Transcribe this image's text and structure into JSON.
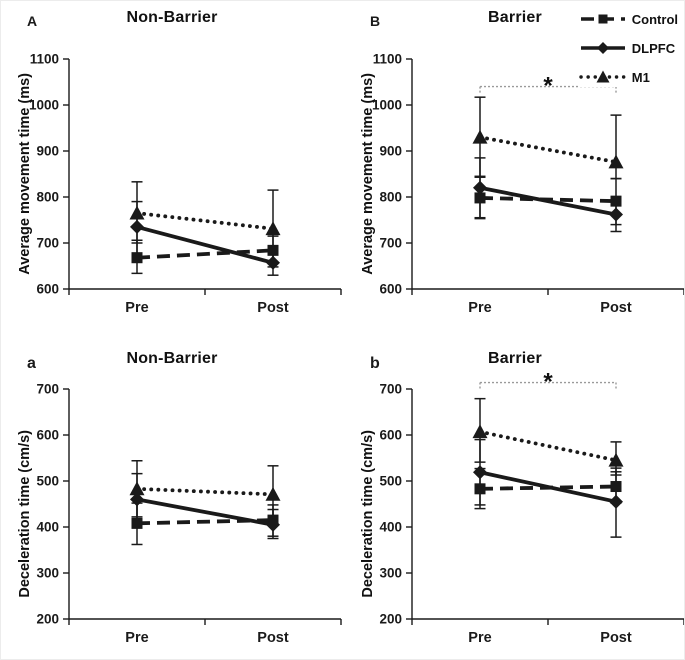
{
  "figure": {
    "background": "#ffffff",
    "ink_color": "#1a1a1a",
    "bracket_color": "#9a9a9a"
  },
  "legend": {
    "position": "top-right",
    "entries": [
      {
        "label": "Control",
        "marker": "square",
        "line": "dashed"
      },
      {
        "label": "DLPFC",
        "marker": "diamond",
        "line": "solid"
      },
      {
        "label": "M1",
        "marker": "triangle",
        "line": "dotted"
      }
    ]
  },
  "chart_data": [
    {
      "type": "line",
      "panel_letter": "A",
      "title": "Non-Barrier",
      "ylabel": "Average movement time (ms)",
      "xlabel": "",
      "ylim": [
        600,
        1100
      ],
      "ytick_step": 100,
      "categories": [
        "Pre",
        "Post"
      ],
      "grid": false,
      "significance": null,
      "series": [
        {
          "name": "Control",
          "marker": "square",
          "line": "dashed",
          "values": [
            668,
            684
          ],
          "err_low": [
            634,
            655
          ],
          "err_high": [
            706,
            715
          ]
        },
        {
          "name": "DLPFC",
          "marker": "diamond",
          "line": "solid",
          "values": [
            735,
            657
          ],
          "err_low": [
            678,
            630
          ],
          "err_high": [
            790,
            690
          ]
        },
        {
          "name": "M1",
          "marker": "triangle",
          "line": "dotted",
          "values": [
            765,
            731
          ],
          "err_low": [
            700,
            648
          ],
          "err_high": [
            833,
            815
          ]
        }
      ]
    },
    {
      "type": "line",
      "panel_letter": "B",
      "title": "Barrier",
      "ylabel": "Average movement time (ms)",
      "xlabel": "",
      "ylim": [
        600,
        1100
      ],
      "ytick_step": 100,
      "categories": [
        "Pre",
        "Post"
      ],
      "grid": false,
      "significance": {
        "label": "*",
        "y": 1040
      },
      "series": [
        {
          "name": "Control",
          "marker": "square",
          "line": "dashed",
          "values": [
            798,
            791
          ],
          "err_low": [
            753,
            740
          ],
          "err_high": [
            843,
            840
          ]
        },
        {
          "name": "DLPFC",
          "marker": "diamond",
          "line": "solid",
          "values": [
            820,
            762
          ],
          "err_low": [
            755,
            725
          ],
          "err_high": [
            885,
            800
          ]
        },
        {
          "name": "M1",
          "marker": "triangle",
          "line": "dotted",
          "values": [
            930,
            876
          ],
          "err_low": [
            845,
            840
          ],
          "err_high": [
            1017,
            978
          ]
        }
      ]
    },
    {
      "type": "line",
      "panel_letter": "a",
      "title": "Non-Barrier",
      "ylabel": "Deceleration time (cm/s)",
      "xlabel": "",
      "ylim": [
        200,
        700
      ],
      "ytick_step": 100,
      "categories": [
        "Pre",
        "Post"
      ],
      "grid": false,
      "significance": null,
      "series": [
        {
          "name": "Control",
          "marker": "square",
          "line": "dashed",
          "values": [
            408,
            415
          ],
          "err_low": [
            362,
            380
          ],
          "err_high": [
            452,
            448
          ]
        },
        {
          "name": "DLPFC",
          "marker": "diamond",
          "line": "solid",
          "values": [
            460,
            405
          ],
          "err_low": [
            398,
            375
          ],
          "err_high": [
            516,
            438
          ]
        },
        {
          "name": "M1",
          "marker": "triangle",
          "line": "dotted",
          "values": [
            483,
            471
          ],
          "err_low": [
            422,
            410
          ],
          "err_high": [
            544,
            533
          ]
        }
      ]
    },
    {
      "type": "line",
      "panel_letter": "b",
      "title": "Barrier",
      "ylabel": "Deceleration time (cm/s)",
      "xlabel": "",
      "ylim": [
        200,
        700
      ],
      "ytick_step": 100,
      "categories": [
        "Pre",
        "Post"
      ],
      "grid": false,
      "significance": {
        "label": "*",
        "y": 714
      },
      "series": [
        {
          "name": "Control",
          "marker": "square",
          "line": "dashed",
          "values": [
            483,
            488
          ],
          "err_low": [
            440,
            452
          ],
          "err_high": [
            527,
            520
          ]
        },
        {
          "name": "DLPFC",
          "marker": "diamond",
          "line": "solid",
          "values": [
            519,
            455
          ],
          "err_low": [
            448,
            378
          ],
          "err_high": [
            590,
            528
          ]
        },
        {
          "name": "M1",
          "marker": "triangle",
          "line": "dotted",
          "values": [
            607,
            545
          ],
          "err_low": [
            541,
            513
          ],
          "err_high": [
            679,
            585
          ]
        }
      ]
    }
  ]
}
